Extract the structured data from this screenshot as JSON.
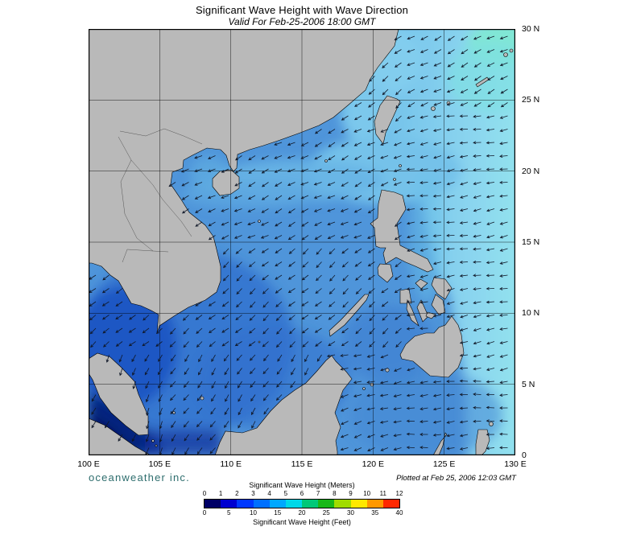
{
  "header": {
    "title": "Significant Wave Height with Wave Direction",
    "subtitle": "Valid For Feb-25-2006 18:00 GMT"
  },
  "map": {
    "x_tick_labels": [
      "100 E",
      "105 E",
      "110 E",
      "115 E",
      "120 E",
      "125 E",
      "130 E"
    ],
    "y_tick_labels": [
      "30 N",
      "25 N",
      "20 N",
      "15 N",
      "10 N",
      "5 N",
      "0"
    ],
    "colors": {
      "land": "#b9b9b9",
      "coastline": "#000000",
      "ocean_base": "#4f95da",
      "ocean_light_pacific": "#8ad4ef",
      "ocean_dark_gulf": "#1d52c2",
      "ocean_darkest_strait": "#000d52",
      "grid": "#000000",
      "arrow": "#101828"
    }
  },
  "footer": {
    "branding": "oceanweather inc.",
    "branding_color": "#2d6d6d",
    "plotted_note": "Plotted at Feb 25, 2006 12:03 GMT"
  },
  "legend": {
    "meters_title": "Significant Wave Height (Meters)",
    "feet_title": "Significant Wave Height (Feet)",
    "meters_ticks": [
      "0",
      "1",
      "2",
      "3",
      "4",
      "5",
      "6",
      "7",
      "8",
      "9",
      "10",
      "11",
      "12"
    ],
    "feet_ticks": [
      "0",
      "5",
      "10",
      "15",
      "20",
      "25",
      "30",
      "35",
      "40"
    ],
    "colors": [
      "#000066",
      "#0000d0",
      "#0038ff",
      "#0070ff",
      "#00a8ff",
      "#00d8e8",
      "#00c878",
      "#18b818",
      "#a0dc00",
      "#ffe800",
      "#ff9800",
      "#ff2800"
    ]
  }
}
